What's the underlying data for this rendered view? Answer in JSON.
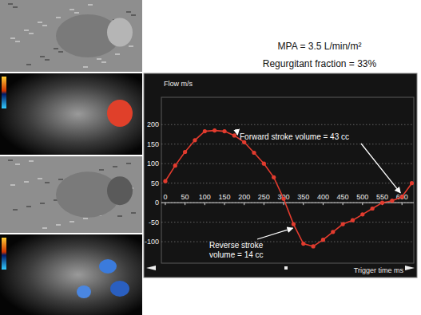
{
  "chart_data": {
    "type": "line",
    "title": "MPA = 3.5 L/min/m²",
    "subtitle": "Regurgitant fraction = 33%",
    "y_label": "Flow m/s",
    "x_label": "Trigger time ms",
    "annotations": [
      "Forward stroke volume = 43 cc",
      "Reverse stroke volume = 14 cc"
    ],
    "x": [
      0,
      25,
      50,
      75,
      100,
      125,
      150,
      175,
      200,
      225,
      250,
      275,
      300,
      325,
      350,
      375,
      400,
      425,
      450,
      475,
      500,
      525,
      550,
      575,
      600,
      625
    ],
    "values": [
      55,
      95,
      130,
      160,
      183,
      185,
      183,
      172,
      155,
      128,
      100,
      65,
      10,
      -55,
      -105,
      -112,
      -95,
      -75,
      -55,
      -45,
      -30,
      -15,
      0,
      5,
      15,
      50
    ],
    "color": "#e23b2e",
    "marker": "circle",
    "xlim": [
      -10,
      630
    ],
    "ylim": [
      -155,
      270
    ],
    "xticks": [
      0,
      50,
      100,
      150,
      200,
      250,
      300,
      350,
      400,
      450,
      500,
      550,
      600
    ],
    "yticks": [
      200,
      150,
      100,
      50,
      0,
      -50,
      -100
    ],
    "grid": true
  }
}
